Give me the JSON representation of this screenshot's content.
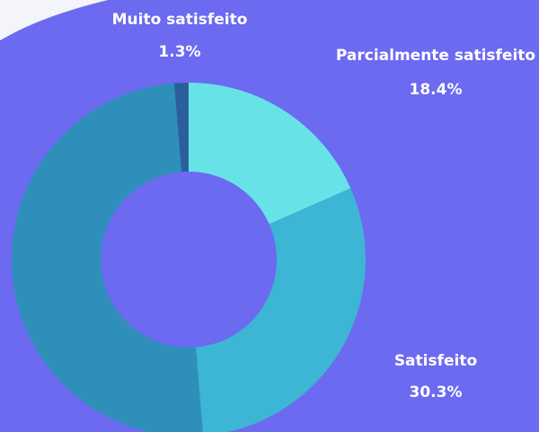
{
  "chart_data": {
    "type": "donut",
    "categories": [
      "Parcialmente satisfeito",
      "Satisfeito",
      null,
      "Muito satisfeito"
    ],
    "values": [
      18.4,
      30.3,
      50,
      1.3
    ],
    "value_labels": [
      "18.4%",
      "30.3%",
      null,
      "1.3%"
    ],
    "colors": [
      "#67e3e8",
      "#3db5d4",
      "#2e8fbb",
      "#2b5f9c"
    ]
  }
}
